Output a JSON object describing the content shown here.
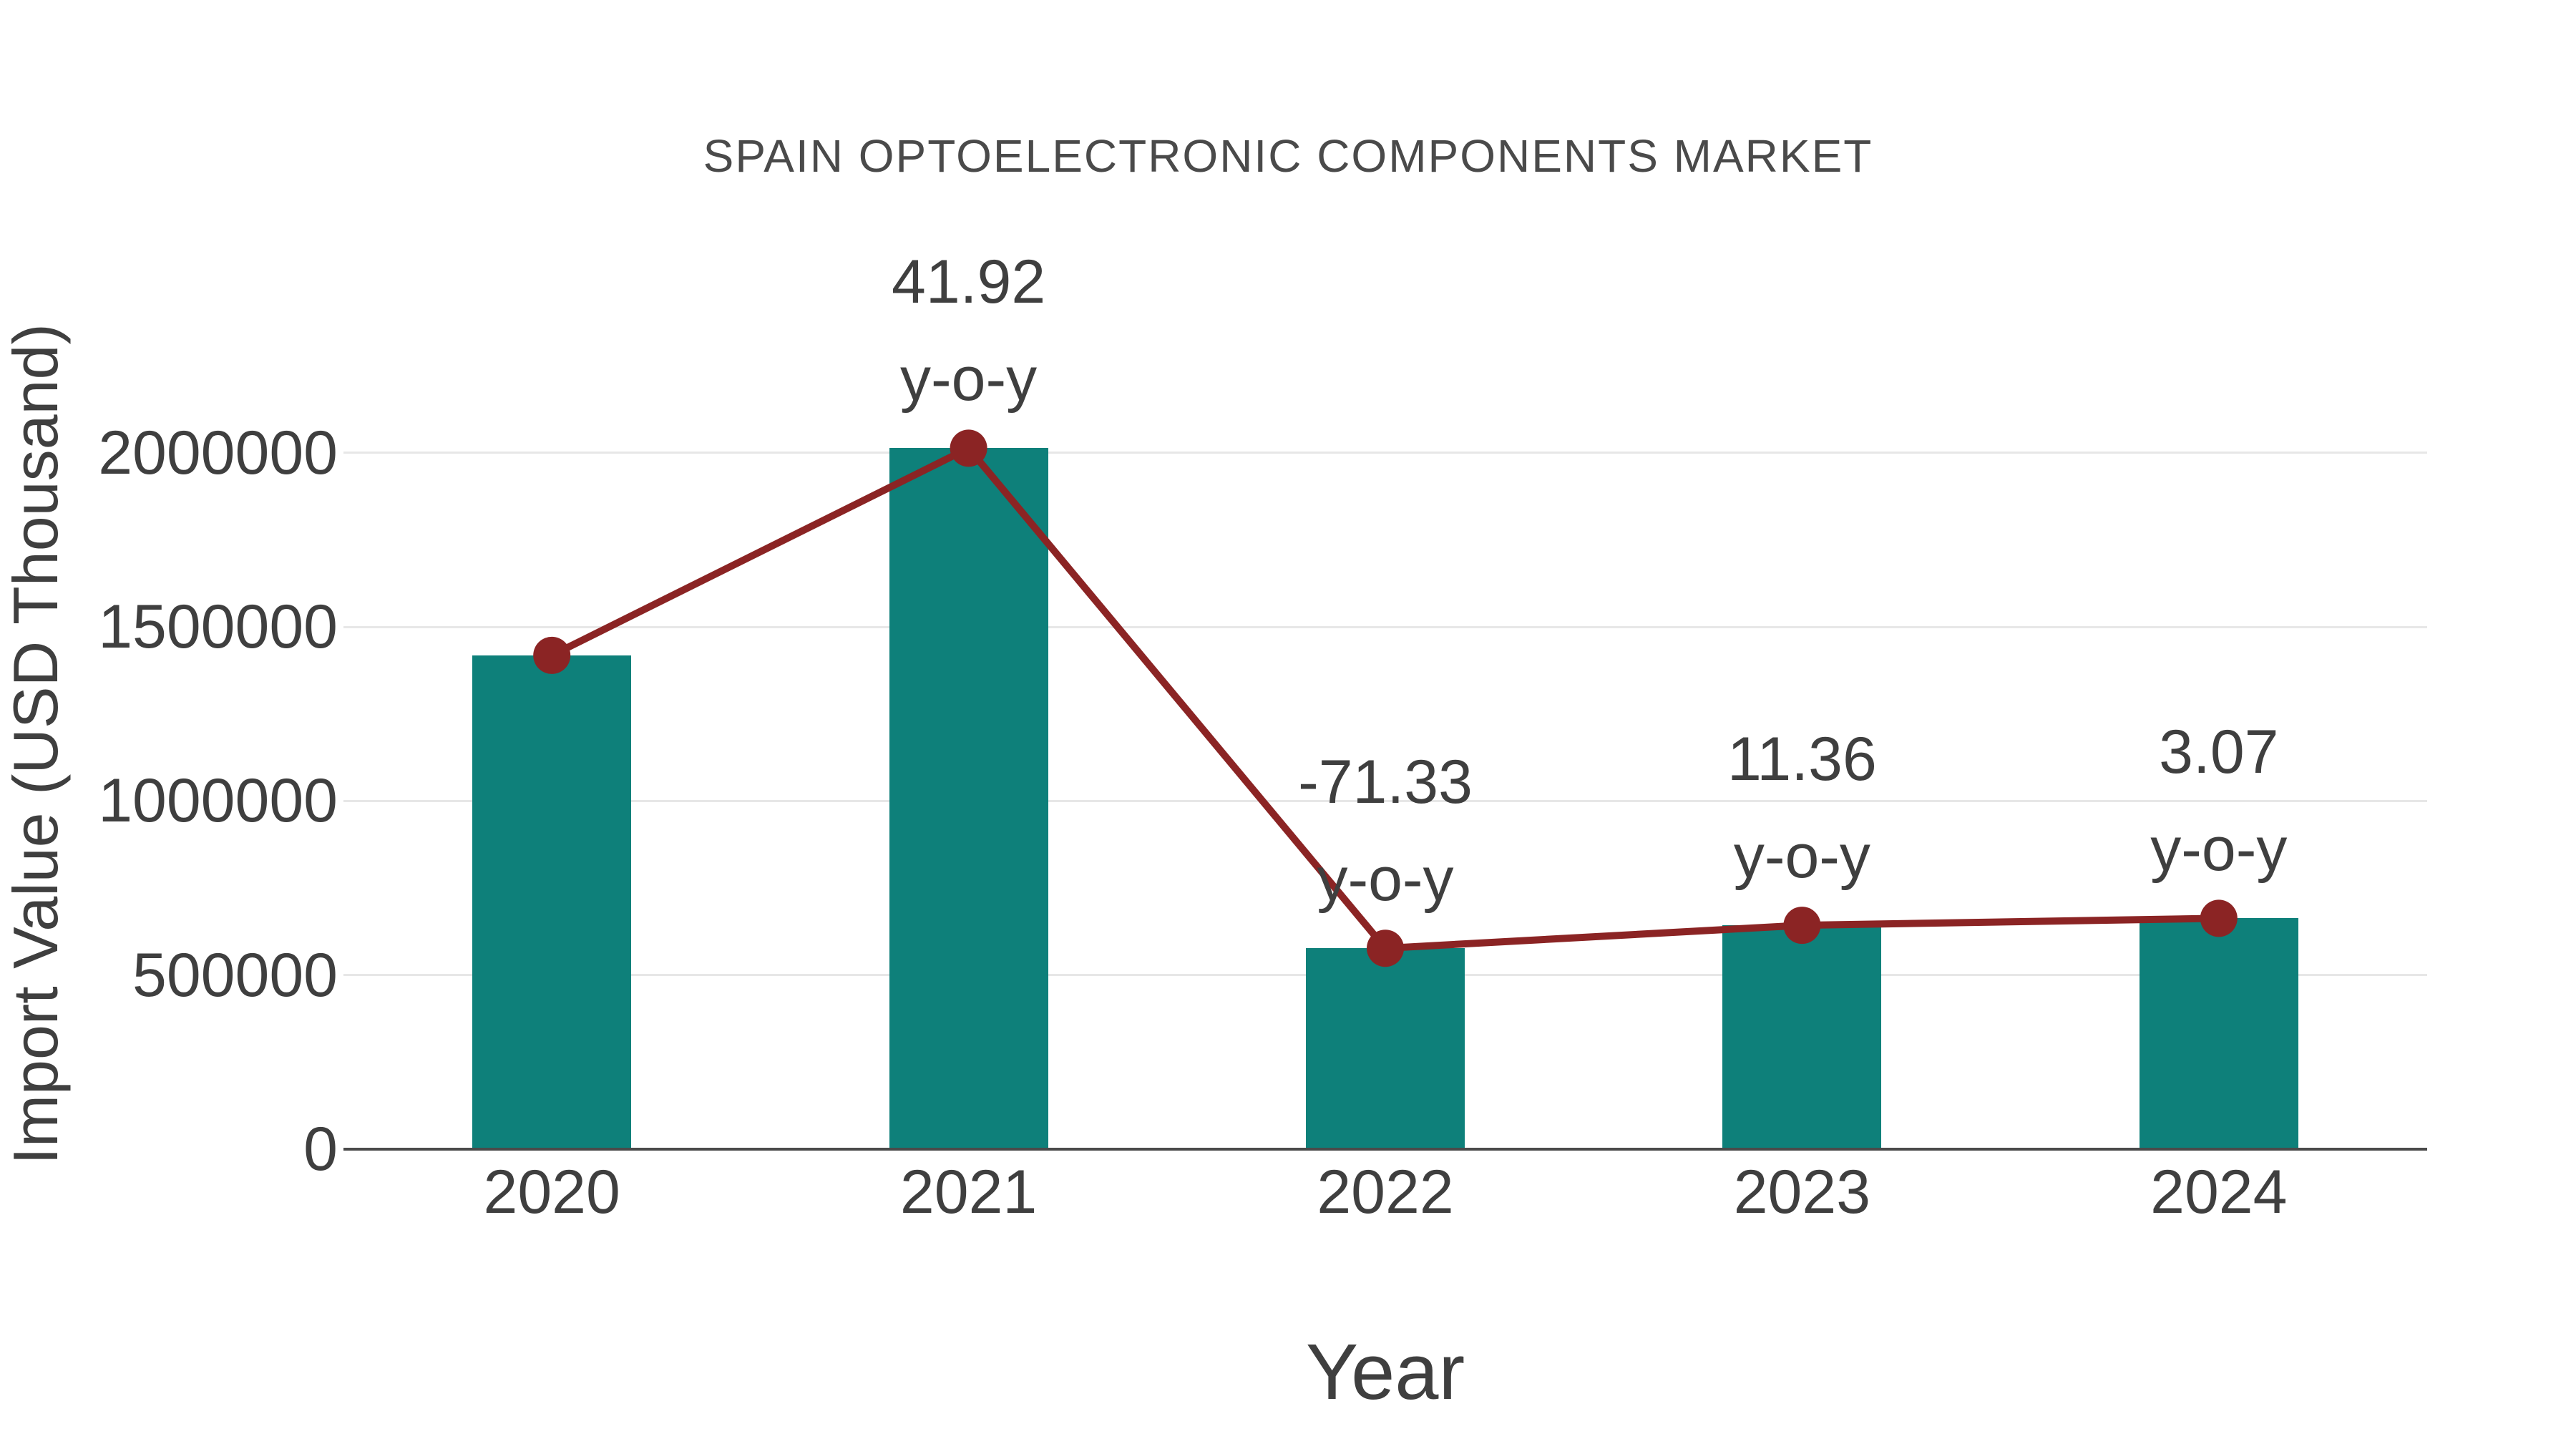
{
  "colors": {
    "bar_teal": "#0E807A",
    "line_dark_red": "#8B2424",
    "text_gray": "#3F3F3F",
    "title_gray": "#4A4A4A",
    "gridline_gray": "#E7E7E7",
    "axis_line_gray": "#4A4A4A",
    "background": "#FFFFFF"
  },
  "chart_data": {
    "type": "bar",
    "subtype": "bar-with-line-overlay",
    "title": "SPAIN OPTOELECTRONIC COMPONENTS MARKET",
    "xlabel": "Year",
    "ylabel": "Import Value (USD Thousand)",
    "categories": [
      "2020",
      "2021",
      "2022",
      "2023",
      "2024"
    ],
    "series": [
      {
        "name": "Import Value (bars)",
        "type": "bar",
        "values": [
          1418000,
          2013000,
          577000,
          643000,
          663000
        ]
      },
      {
        "name": "Import Value (line with markers)",
        "type": "line",
        "values": [
          1418000,
          2013000,
          577000,
          643000,
          663000
        ]
      }
    ],
    "annotations": [
      {
        "category": "2021",
        "line1": "41.92",
        "line2": "y-o-y"
      },
      {
        "category": "2022",
        "line1": "-71.33",
        "line2": "y-o-y"
      },
      {
        "category": "2023",
        "line1": "11.36",
        "line2": "y-o-y"
      },
      {
        "category": "2024",
        "line1": "3.07",
        "line2": "y-o-y"
      }
    ],
    "yticks": [
      0,
      500000,
      1000000,
      1500000,
      2000000
    ],
    "ylim": [
      0,
      2400000
    ],
    "grid": "horizontal-light-gray",
    "legend": "none"
  }
}
